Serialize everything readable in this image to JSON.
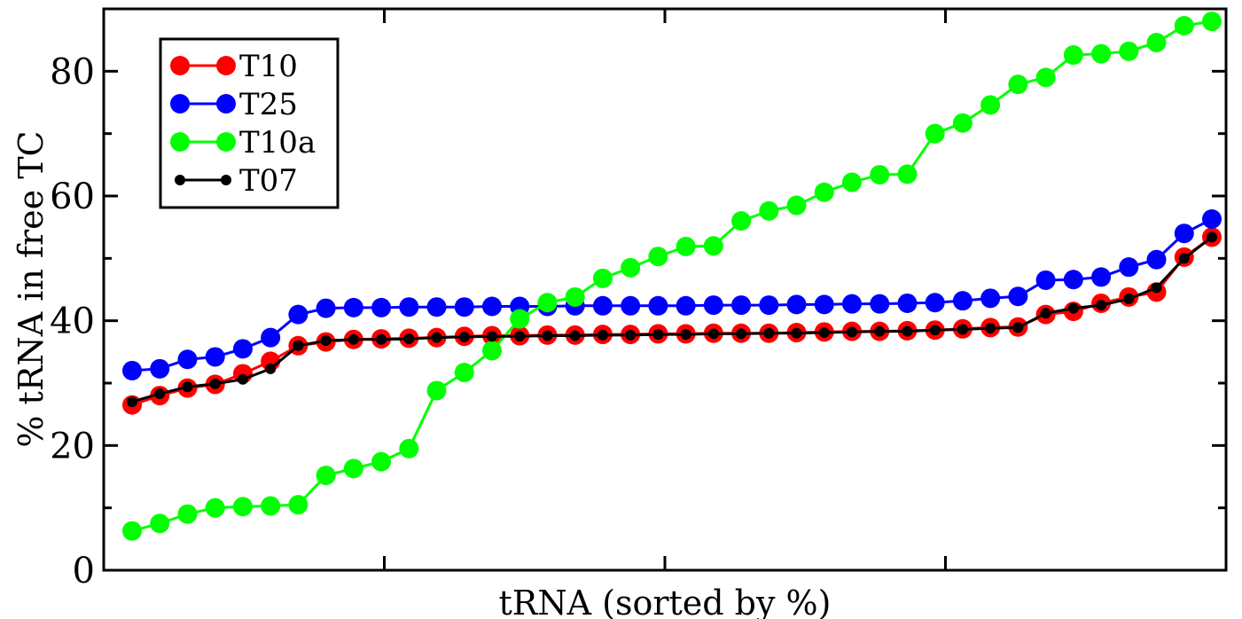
{
  "chart_data": {
    "type": "line",
    "xlabel": "tRNA (sorted by %)",
    "ylabel": "% tRNA in free TC",
    "xlim": [
      0,
      40
    ],
    "ylim": [
      0,
      90
    ],
    "yticks": [
      0,
      20,
      40,
      60,
      80
    ],
    "xticks": [
      10,
      20,
      30
    ],
    "grid": false,
    "legend_position": "top-left",
    "x": [
      1,
      2,
      3,
      4,
      5,
      6,
      7,
      8,
      9,
      10,
      11,
      12,
      13,
      14,
      15,
      16,
      17,
      18,
      19,
      20,
      21,
      22,
      23,
      24,
      25,
      26,
      27,
      28,
      29,
      30,
      31,
      32,
      33,
      34,
      35,
      36,
      37,
      38,
      39,
      40
    ],
    "series": [
      {
        "name": "T10",
        "color": "#ff0000",
        "marker": "large",
        "values": [
          26.5,
          28,
          29.2,
          29.8,
          31.5,
          33.5,
          36,
          36.6,
          37,
          37.1,
          37.2,
          37.3,
          37.5,
          37.6,
          37.6,
          37.7,
          37.7,
          37.8,
          37.8,
          37.9,
          37.9,
          38,
          38,
          38,
          38.1,
          38.2,
          38.3,
          38.3,
          38.4,
          38.5,
          38.7,
          38.9,
          39,
          41,
          41.5,
          42.8,
          43.8,
          44.6,
          50.2,
          53.4
        ]
      },
      {
        "name": "T25",
        "color": "#0000ff",
        "marker": "large",
        "values": [
          32,
          32.3,
          33.8,
          34.2,
          35.5,
          37.3,
          41,
          42,
          42.1,
          42.1,
          42.2,
          42.2,
          42.2,
          42.3,
          42.3,
          42.3,
          42.4,
          42.4,
          42.4,
          42.4,
          42.4,
          42.5,
          42.5,
          42.5,
          42.6,
          42.6,
          42.7,
          42.7,
          42.8,
          42.9,
          43.2,
          43.6,
          43.9,
          46.5,
          46.6,
          47,
          48.6,
          49.8,
          54,
          56.3
        ]
      },
      {
        "name": "T10a",
        "color": "#00ff00",
        "marker": "large",
        "values": [
          6.3,
          7.5,
          9,
          10,
          10.2,
          10.3,
          10.5,
          15.2,
          16.3,
          17.4,
          19.5,
          28.8,
          31.7,
          35.2,
          40.3,
          42.9,
          43.8,
          46.8,
          48.5,
          50.3,
          51.9,
          52,
          56,
          57.6,
          58.5,
          60.6,
          62.2,
          63.4,
          63.5,
          70,
          71.7,
          74.6,
          77.9,
          79,
          82.6,
          82.8,
          83.2,
          84.6,
          87.3,
          88
        ]
      },
      {
        "name": "T07",
        "color": "#000000",
        "marker": "small",
        "values": [
          27,
          28.3,
          29.4,
          29.9,
          30.6,
          32.3,
          36,
          36.8,
          37,
          37,
          37.1,
          37.3,
          37.4,
          37.5,
          37.5,
          37.6,
          37.6,
          37.7,
          37.7,
          37.8,
          37.8,
          37.9,
          37.9,
          38,
          38,
          38.1,
          38.2,
          38.3,
          38.3,
          38.5,
          38.6,
          38.8,
          38.9,
          41.2,
          42,
          42.5,
          43.5,
          45.3,
          50,
          53.4
        ]
      }
    ]
  }
}
